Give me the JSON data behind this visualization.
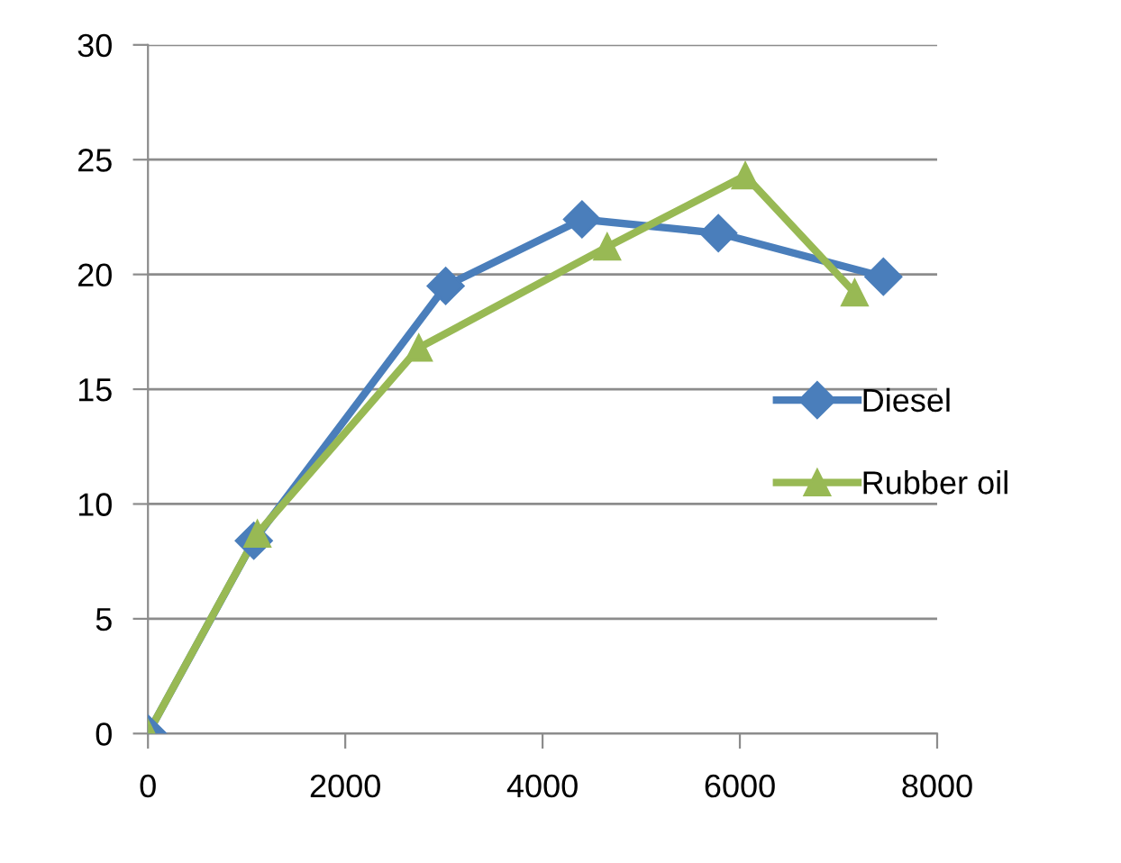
{
  "chart_data": {
    "type": "line",
    "xlim": [
      0,
      8000
    ],
    "xticks": [
      0,
      2000,
      4000,
      6000,
      8000
    ],
    "ylim": [
      0,
      30
    ],
    "yticks": [
      0,
      5,
      10,
      15,
      20,
      25,
      30
    ],
    "grid": "y",
    "legend": "right",
    "series": [
      {
        "name": "Diesel",
        "color": "#4a7ebb",
        "marker": "diamond",
        "x": [
          0,
          1073,
          3018,
          4400,
          5782,
          7455
        ],
        "values": [
          0,
          8.4,
          19.5,
          22.4,
          21.8,
          19.9
        ]
      },
      {
        "name": "Rubber oil",
        "color": "#98b954",
        "marker": "triangle",
        "x": [
          0,
          1109,
          2745,
          4655,
          6055,
          7164
        ],
        "values": [
          0,
          8.7,
          16.8,
          21.2,
          24.3,
          19.2
        ]
      }
    ]
  }
}
